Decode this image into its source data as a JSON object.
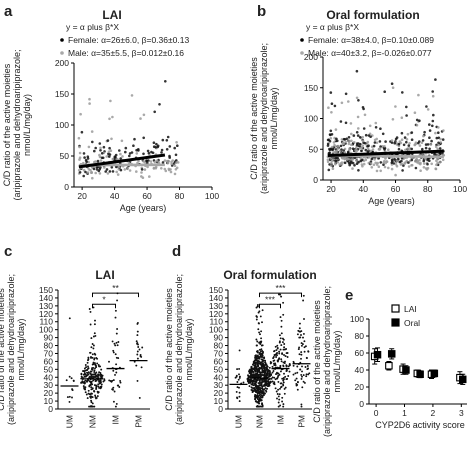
{
  "chart_data": [
    {
      "panel": "a",
      "type": "scatter",
      "title": "LAI",
      "equation": "y = α plus β*X",
      "xlabel": "Age (years)",
      "ylabel": [
        "C/D ratio of the active moieties",
        "(aripiprazole and dehydroaripiprazole;",
        "nmol/L/mg/day)"
      ],
      "xlim": [
        15,
        100
      ],
      "ylim": [
        0,
        200
      ],
      "xticks": [
        20,
        40,
        60,
        80,
        100
      ],
      "yticks": [
        0,
        50,
        100,
        150,
        200
      ],
      "series": [
        {
          "name": "Female",
          "label": "Female: α=26±6.0, β=0.36±0.13",
          "color": "#000000",
          "alpha": 26,
          "beta": 0.36,
          "x_range": [
            18,
            71
          ]
        },
        {
          "name": "Male",
          "label": "Male: α=35±5.5, β=0.012±0.16",
          "color": "#a8a8a8",
          "alpha": 35,
          "beta": 0.012,
          "x_range": [
            18,
            71
          ]
        }
      ]
    },
    {
      "panel": "b",
      "type": "scatter",
      "title": "Oral formulation",
      "equation": "y = α plus β*X",
      "xlabel": "Age (years)",
      "ylabel": [
        "C/D ratio of the active moieties",
        "(aripiprazole and dehydroaripiprazole;",
        "nmol/L/mg/day)"
      ],
      "xlim": [
        15,
        100
      ],
      "ylim": [
        0,
        200
      ],
      "xticks": [
        20,
        40,
        60,
        80,
        100
      ],
      "yticks": [
        0,
        50,
        100,
        150,
        200
      ],
      "series": [
        {
          "name": "Female",
          "label": "Female: α=38±4.0, β=0.10±0.089",
          "color": "#000000",
          "alpha": 38,
          "beta": 0.1,
          "x_range": [
            18,
            90
          ]
        },
        {
          "name": "Male",
          "label": "Male: α=40±3.2, β=-0.026±0.077",
          "color": "#a8a8a8",
          "alpha": 40,
          "beta": -0.026,
          "x_range": [
            18,
            90
          ]
        }
      ]
    },
    {
      "panel": "c",
      "type": "scatter",
      "title": "LAI",
      "ylabel": [
        "C/D ratio of the active moieties",
        "(aripiprazole and dehydroaripiprazole;",
        "nmol/L/mg/day)"
      ],
      "categories": [
        "UM",
        "NM",
        "IM",
        "PM"
      ],
      "ylim": [
        0,
        150
      ],
      "yticks": [
        0,
        10,
        20,
        30,
        40,
        50,
        60,
        70,
        80,
        90,
        100,
        110,
        120,
        130,
        140,
        150
      ],
      "medians": [
        29,
        38,
        51,
        61
      ],
      "significance": [
        {
          "from": "NM",
          "to": "IM",
          "label": "*"
        },
        {
          "from": "NM",
          "to": "PM",
          "label": "**"
        }
      ]
    },
    {
      "panel": "d",
      "type": "scatter",
      "title": "Oral formulation",
      "ylabel": [
        "C/D ratio of the active moieties",
        "(aripiprazole and dehydroaripiprazole;",
        "nmol/L/mg/day)"
      ],
      "categories": [
        "UM",
        "NM",
        "IM",
        "PM"
      ],
      "ylim": [
        0,
        150
      ],
      "yticks": [
        0,
        10,
        20,
        30,
        40,
        50,
        60,
        70,
        80,
        90,
        100,
        110,
        120,
        130,
        140,
        150
      ],
      "medians": [
        31,
        39,
        51,
        57
      ],
      "significance": [
        {
          "from": "NM",
          "to": "IM",
          "label": "***"
        },
        {
          "from": "NM",
          "to": "PM",
          "label": "***"
        }
      ]
    },
    {
      "panel": "e",
      "type": "scatter",
      "xlabel": "CYP2D6 activity score",
      "ylabel": [
        "C/D ratio of the active moieties",
        "(aripiprazole and dehydroaripiprazole;",
        "nmol/L/mg/day)"
      ],
      "xlim": [
        -0.25,
        3.2
      ],
      "ylim": [
        0,
        100
      ],
      "xticks": [
        0,
        1,
        2,
        3
      ],
      "yticks": [
        0,
        20,
        40,
        60,
        80,
        100
      ],
      "series": [
        {
          "name": "LAI",
          "marker": "open-square",
          "x": [
            -0.05,
            0.45,
            0.95,
            1.45,
            1.95,
            2.95
          ],
          "y": [
            56,
            45,
            41,
            36,
            35,
            31
          ],
          "err": [
            9,
            5,
            6,
            4,
            5,
            7
          ]
        },
        {
          "name": "Oral",
          "marker": "filled-square",
          "x": [
            0.05,
            0.55,
            1.05,
            1.55,
            2.05,
            3.05
          ],
          "y": [
            58,
            59,
            40,
            35,
            36,
            29
          ],
          "err": [
            8,
            6,
            5,
            4,
            4,
            6
          ]
        }
      ]
    }
  ]
}
